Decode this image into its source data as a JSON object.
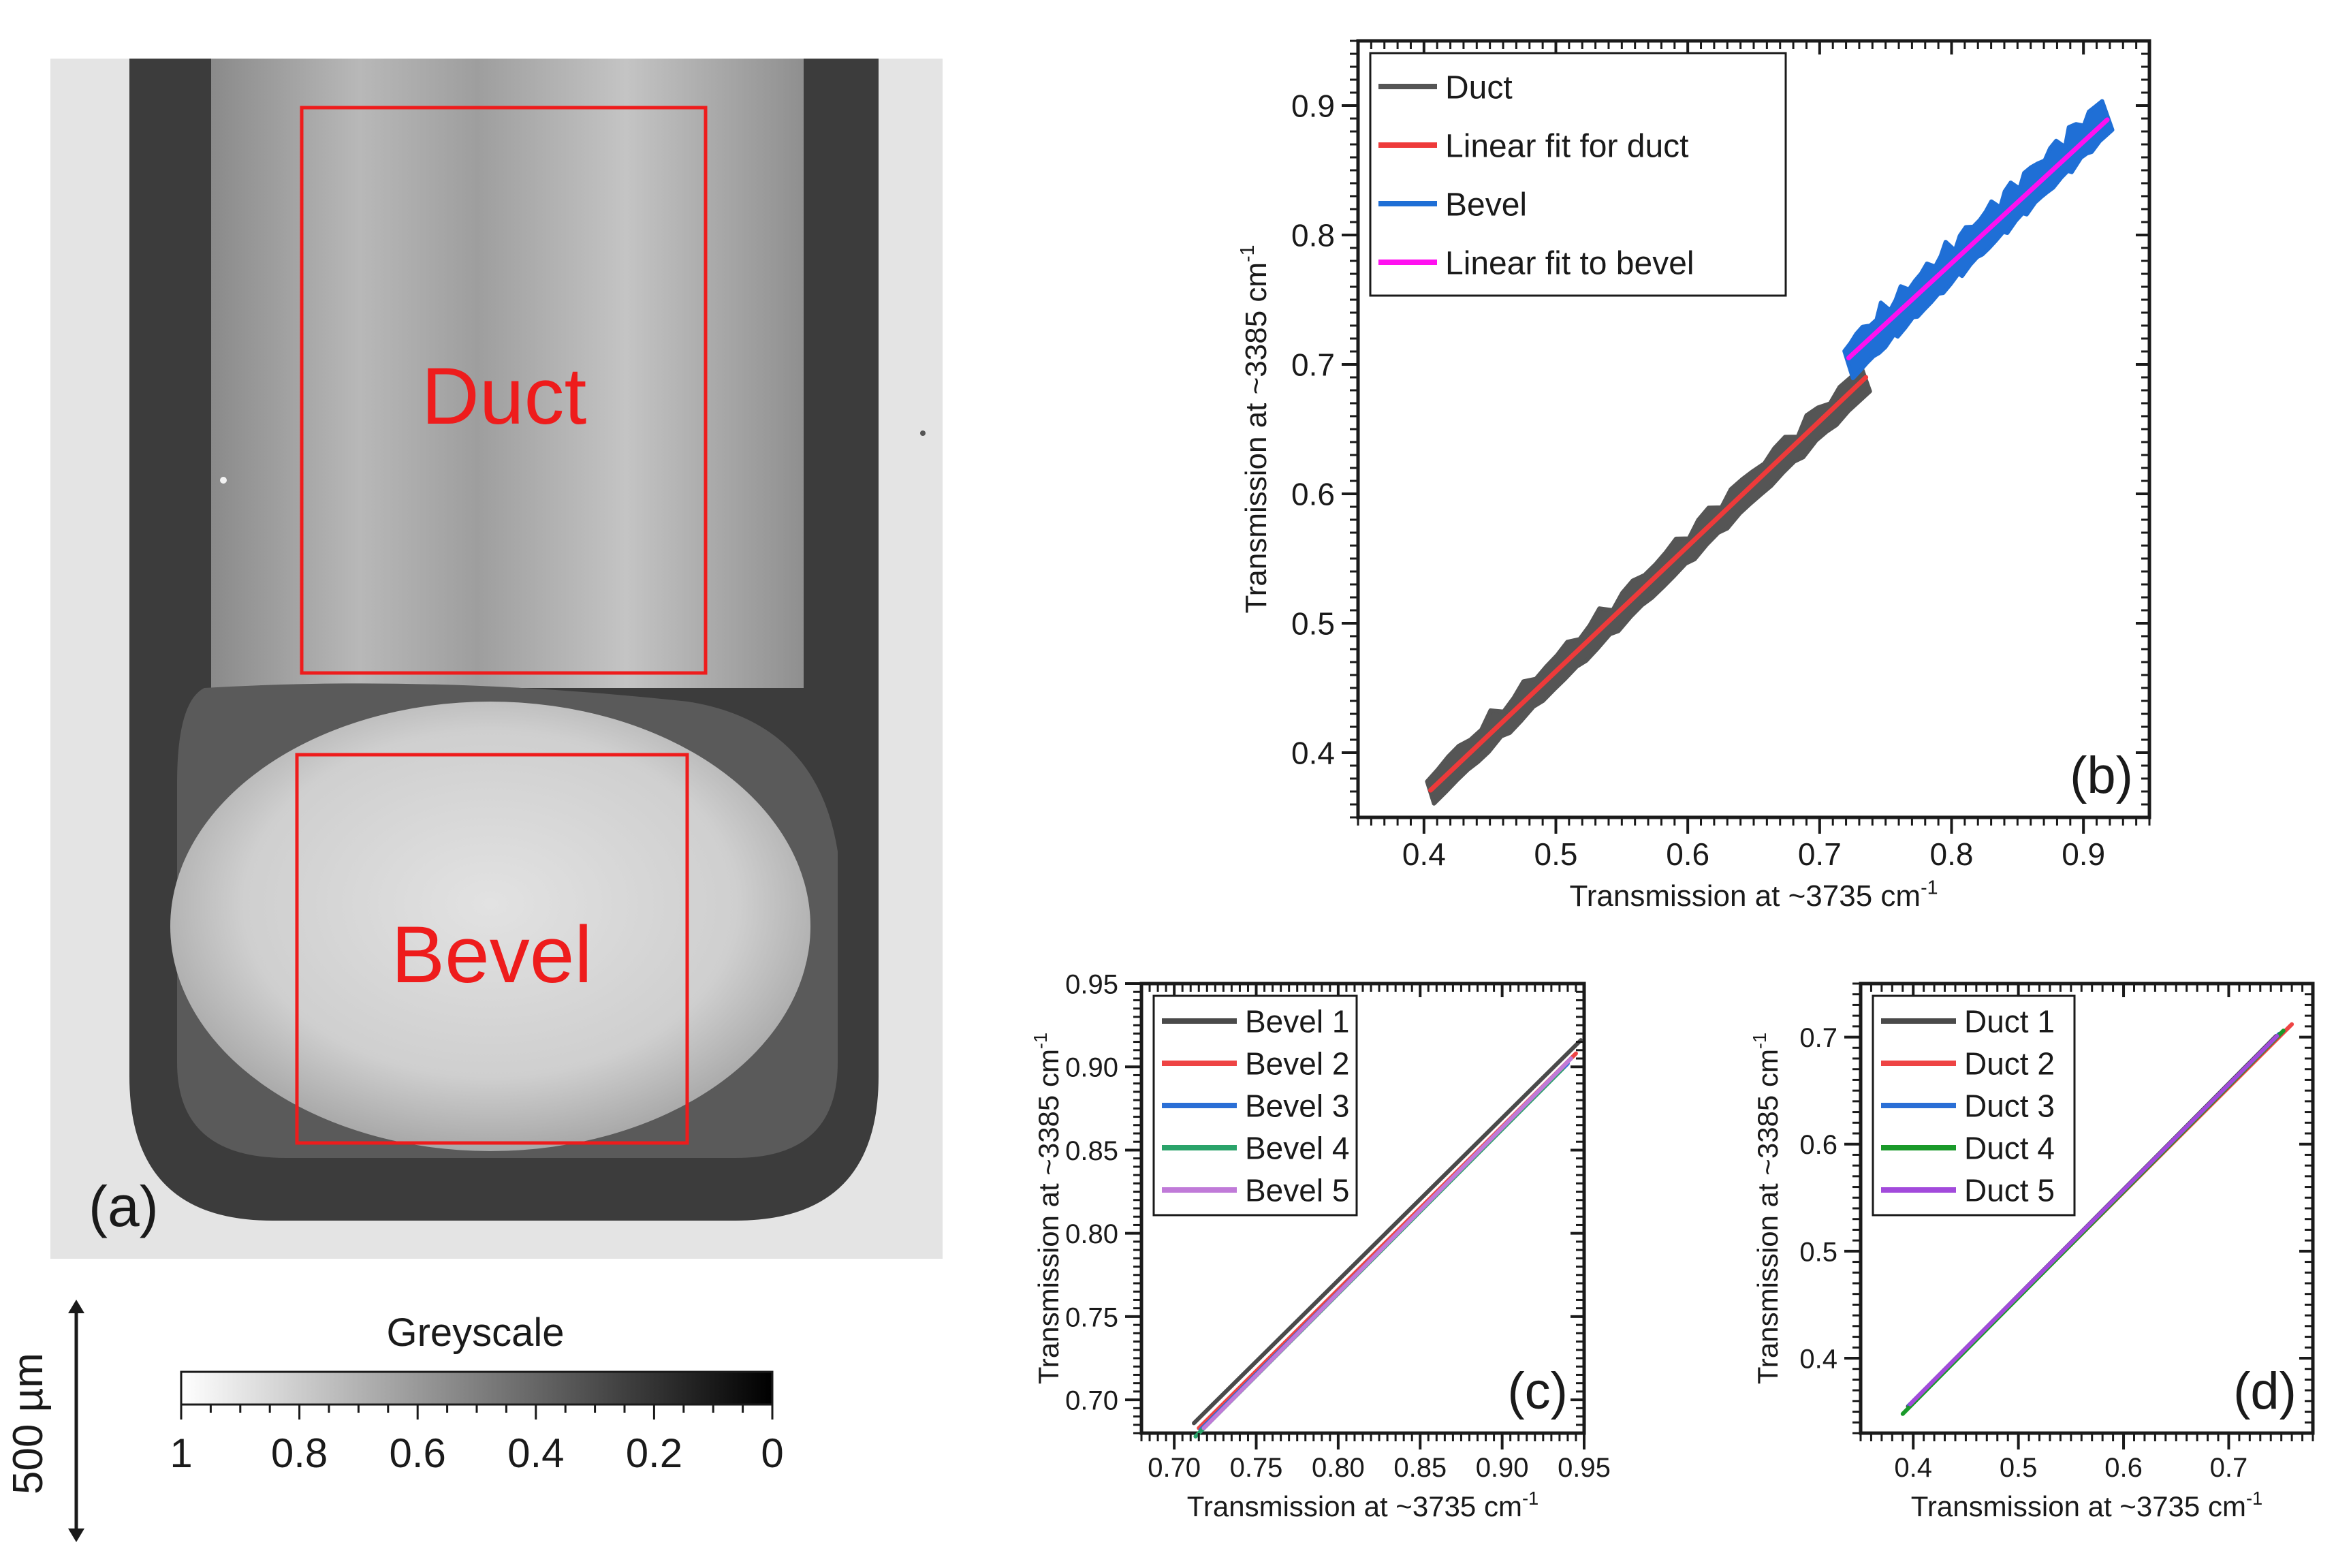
{
  "panel_a": {
    "label": "(a)",
    "regions": [
      {
        "label": "Duct"
      },
      {
        "label": "Bevel"
      }
    ],
    "colorbar": {
      "title": "Greyscale",
      "ticks": [
        "1",
        "0.8",
        "0.6",
        "0.4",
        "0.2",
        "0"
      ]
    },
    "scale_bar": {
      "label": "500 µm"
    },
    "colors": {
      "box": "#ee1c1c",
      "text": "#ee1c1c"
    }
  },
  "chart_data": [
    {
      "panel": "(b)",
      "type": "scatter",
      "xlabel": "Transmission at ~3735 cm",
      "ylabel": "Transmission at ~3385 cm",
      "unit_superscript": "-1",
      "xlim": [
        0.35,
        0.95
      ],
      "ylim": [
        0.35,
        0.95
      ],
      "xticks": [
        "0.4",
        "0.5",
        "0.6",
        "0.7",
        "0.8",
        "0.9"
      ],
      "yticks": [
        "0.4",
        "0.5",
        "0.6",
        "0.7",
        "0.8",
        "0.9"
      ],
      "legend": "top-left",
      "series": [
        {
          "name": "Duct",
          "color": "#555555",
          "kind": "band",
          "x": [
            0.405,
            0.735
          ],
          "y": [
            0.371,
            0.688
          ],
          "spread": 0.009
        },
        {
          "name": "Linear fit for duct",
          "color": "#ee3a3a",
          "kind": "line",
          "x": [
            0.405,
            0.735
          ],
          "y": [
            0.371,
            0.69
          ]
        },
        {
          "name": "Bevel",
          "color": "#1f6fd6",
          "kind": "band",
          "x": [
            0.722,
            0.918
          ],
          "y": [
            0.702,
            0.892
          ],
          "spread": 0.011
        },
        {
          "name": "Linear fit to bevel",
          "color": "#ff10f0",
          "kind": "line",
          "x": [
            0.722,
            0.918
          ],
          "y": [
            0.705,
            0.889
          ]
        }
      ]
    },
    {
      "panel": "(c)",
      "type": "line",
      "xlabel": "Transmission at ~3735 cm",
      "ylabel": "Transmission at ~3385 cm",
      "unit_superscript": "-1",
      "xlim": [
        0.68,
        0.95
      ],
      "ylim": [
        0.68,
        0.95
      ],
      "xticks": [
        "0.70",
        "0.75",
        "0.80",
        "0.85",
        "0.90",
        "0.95"
      ],
      "yticks": [
        "0.70",
        "0.75",
        "0.80",
        "0.85",
        "0.90",
        "0.95"
      ],
      "legend": "top-left",
      "series": [
        {
          "name": "Bevel 1",
          "color": "#4a4a4a",
          "x": [
            0.712,
            0.948
          ],
          "y": [
            0.686,
            0.916
          ]
        },
        {
          "name": "Bevel 2",
          "color": "#ee4444",
          "x": [
            0.715,
            0.945
          ],
          "y": [
            0.683,
            0.908
          ]
        },
        {
          "name": "Bevel 3",
          "color": "#2a6fd6",
          "x": [
            0.716,
            0.94
          ],
          "y": [
            0.682,
            0.902
          ]
        },
        {
          "name": "Bevel 4",
          "color": "#2aa36a",
          "x": [
            0.713,
            0.937
          ],
          "y": [
            0.678,
            0.899
          ]
        },
        {
          "name": "Bevel 5",
          "color": "#c07ad8",
          "x": [
            0.718,
            0.942
          ],
          "y": [
            0.683,
            0.905
          ]
        }
      ]
    },
    {
      "panel": "(d)",
      "type": "line",
      "xlabel": "Transmission at ~3735 cm",
      "ylabel": "Transmission at ~3385 cm",
      "unit_superscript": "-1",
      "xlim": [
        0.35,
        0.78
      ],
      "ylim": [
        0.33,
        0.75
      ],
      "xticks": [
        "0.4",
        "0.5",
        "0.6",
        "0.7"
      ],
      "yticks": [
        "0.4",
        "0.5",
        "0.6",
        "0.7"
      ],
      "legend": "top-left",
      "series": [
        {
          "name": "Duct 1",
          "color": "#4a4a4a",
          "x": [
            0.395,
            0.745
          ],
          "y": [
            0.355,
            0.701
          ]
        },
        {
          "name": "Duct 2",
          "color": "#ee4444",
          "x": [
            0.398,
            0.76
          ],
          "y": [
            0.357,
            0.712
          ]
        },
        {
          "name": "Duct 3",
          "color": "#2a6fd6",
          "x": [
            0.396,
            0.748
          ],
          "y": [
            0.356,
            0.703
          ]
        },
        {
          "name": "Duct 4",
          "color": "#1a9a2a",
          "x": [
            0.39,
            0.752
          ],
          "y": [
            0.348,
            0.706
          ]
        },
        {
          "name": "Duct 5",
          "color": "#a24adb",
          "x": [
            0.397,
            0.746
          ],
          "y": [
            0.357,
            0.701
          ]
        }
      ]
    }
  ]
}
